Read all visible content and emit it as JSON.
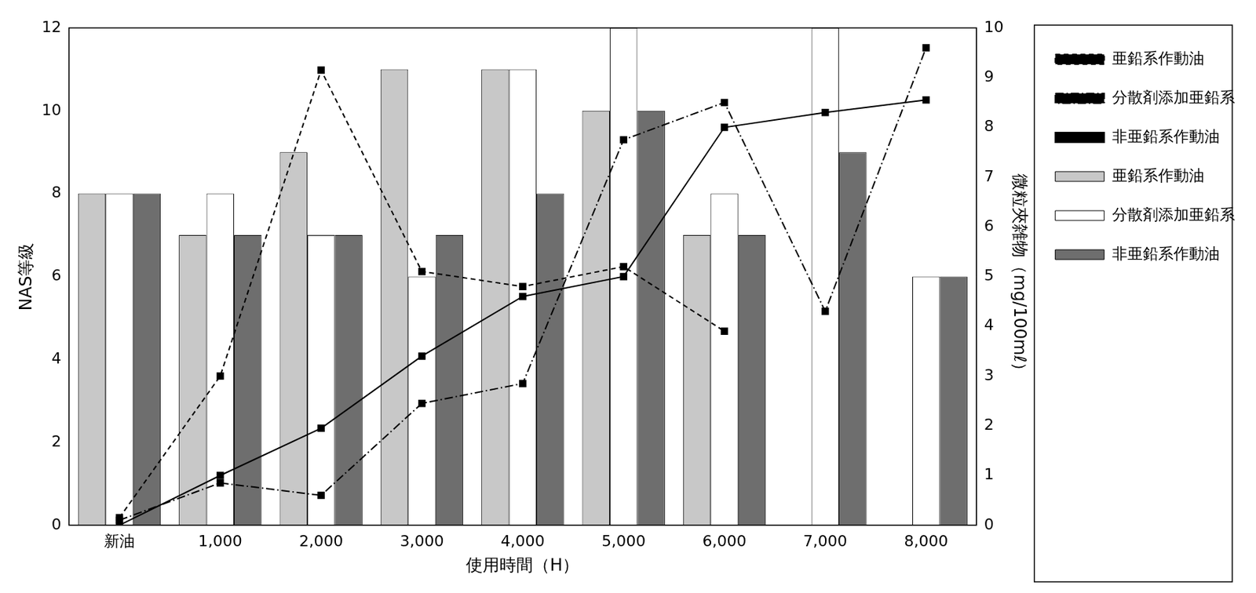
{
  "chart_data": {
    "type": "bar",
    "x_label": "使用時間（H）",
    "y_label": "NAS等級",
    "y2_label": "微粒夾雑物（mg/100mℓ）",
    "categories": [
      "新油",
      "1,000",
      "2,000",
      "3,000",
      "4,000",
      "5,000",
      "6,000",
      "7,000",
      "8,000"
    ],
    "ylim": [
      0,
      12
    ],
    "yticks": [
      0,
      2,
      4,
      6,
      8,
      10,
      12
    ],
    "y2lim": [
      0,
      10
    ],
    "y2ticks": [
      0,
      1,
      2,
      3,
      4,
      5,
      6,
      7,
      8,
      9,
      10
    ],
    "grid": false,
    "legend": "right",
    "series": [
      {
        "name": "亜鉛系作動油",
        "type": "bar",
        "color": "#c8c8c8",
        "values": [
          8,
          7,
          9,
          11,
          11,
          10,
          7,
          null,
          null
        ]
      },
      {
        "name": "分散剤添加亜鉛系作動油",
        "type": "bar",
        "color": "#ffffff",
        "values": [
          8,
          8,
          7,
          6,
          11,
          12,
          8,
          12,
          6
        ]
      },
      {
        "name": "非亜鉛系作動油",
        "type": "bar",
        "color": "#6e6e6e",
        "values": [
          8,
          7,
          7,
          7,
          8,
          10,
          7,
          9,
          6
        ]
      },
      {
        "name": "亜鉛系作動油",
        "type": "line",
        "axis": "y2",
        "color": "#000000",
        "marker": "square",
        "line_style": "dashed",
        "values": [
          0.15,
          3.0,
          9.15,
          5.1,
          4.8,
          5.2,
          3.9,
          null,
          null
        ]
      },
      {
        "name": "分散剤添加亜鉛系作動油",
        "type": "line",
        "axis": "y2",
        "color": "#000000",
        "marker": "square",
        "line_style": "dashdot",
        "values": [
          0.1,
          0.85,
          0.6,
          2.45,
          2.85,
          7.75,
          8.5,
          4.3,
          9.6
        ]
      },
      {
        "name": "非亜鉛系作動油",
        "type": "line",
        "axis": "y2",
        "color": "#000000",
        "marker": "square",
        "line_style": "solid",
        "values": [
          0,
          1.0,
          1.95,
          3.4,
          4.6,
          5.0,
          8.0,
          8.3,
          8.55
        ]
      }
    ]
  }
}
